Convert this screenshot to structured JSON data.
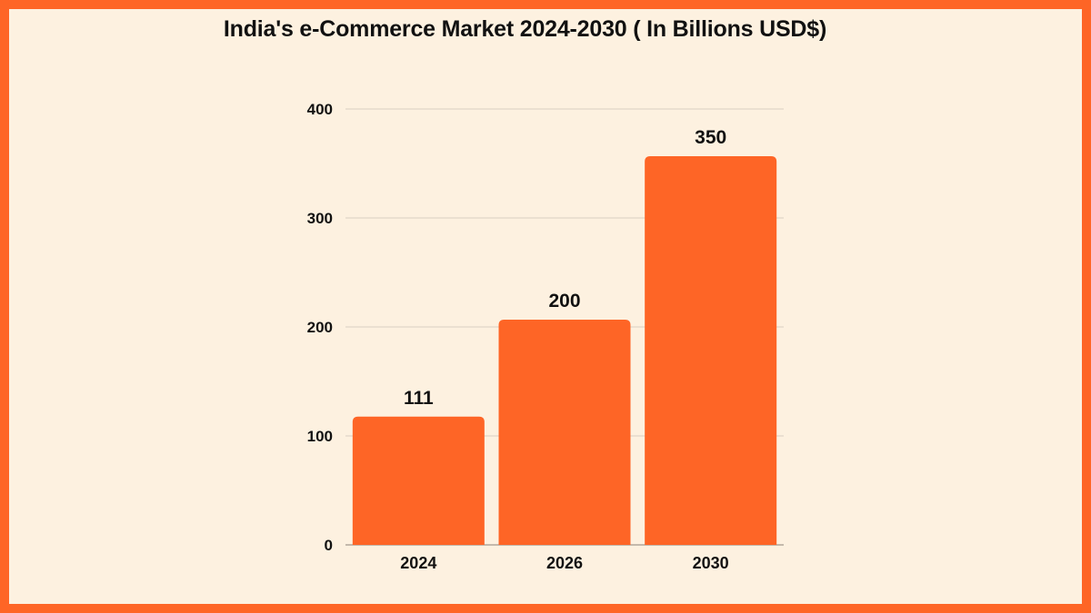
{
  "chart_data": {
    "type": "bar",
    "title": "India's e-Commerce Market 2024-2030 ( In Billions USD$)",
    "categories": [
      "2024",
      "2026",
      "2030"
    ],
    "values": [
      111,
      200,
      350
    ],
    "data_labels": [
      "111",
      "200",
      "350"
    ],
    "yticks": [
      0,
      100,
      200,
      300,
      400
    ],
    "ylim": [
      0,
      400
    ],
    "xlabel": "",
    "ylabel": "",
    "grid": true
  },
  "colors": {
    "bar": "#fe6526",
    "frame": "#fe6526",
    "background": "#fdf1e0",
    "grid": "#d9cfc2"
  }
}
